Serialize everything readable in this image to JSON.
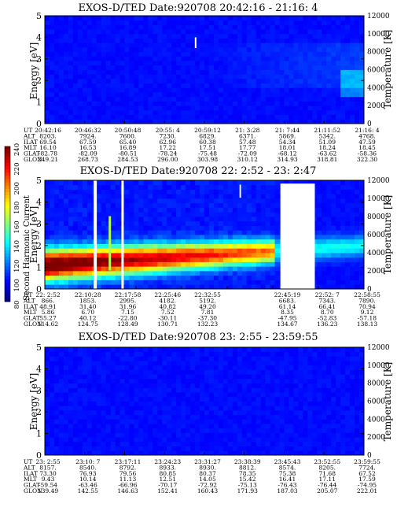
{
  "chart_data": [
    {
      "type": "heatmap",
      "title": "EXOS-D/TED   Date:920708  20:42:16 - 21:16: 4",
      "ylabel": "Energy [eV]",
      "y2label": "Temperature [K]",
      "ylim": [
        0,
        5
      ],
      "y2lim": [
        0,
        12000
      ],
      "yticks": [
        "0",
        "1",
        "2",
        "3",
        "4",
        "5"
      ],
      "y2ticks": [
        "0",
        "2000",
        "4000",
        "6000",
        "8000",
        "10000",
        "12000"
      ],
      "time_ticks": [
        "20:42:16",
        "20:46:32",
        "20:50:48",
        "20:55: 4",
        "20:59:12",
        "21: 3:28",
        "21: 7:44",
        "21:11:52",
        "21:16: 4"
      ],
      "table": [
        {
          "label": "UT",
          "values": [
            "20:42:16",
            "20:46:32",
            "20:50:48",
            "20:55: 4",
            "20:59:12",
            "21: 3:28",
            "21: 7:44",
            "21:11:52",
            "21:16: 4"
          ]
        },
        {
          "label": "ALT",
          "values": [
            "8203.",
            "7924.",
            "7600.",
            "7230.",
            "6829.",
            "6371.",
            "5869.",
            "5342.",
            "4768."
          ]
        },
        {
          "label": "ILAT",
          "values": [
            "69.54",
            "67.59",
            "65.40",
            "62.96",
            "60.38",
            "57.48",
            "54.34",
            "51.09",
            "47.59"
          ]
        },
        {
          "label": "MLT",
          "values": [
            "16.10",
            "16.53",
            "16.89",
            "17.22",
            "17.51",
            "17.77",
            "18.01",
            "18.24",
            "18.45"
          ]
        },
        {
          "label": "GLAT",
          "values": [
            "-82.78",
            "-82.09",
            "-80.51",
            "-78.24",
            "-75.48",
            "-72.09",
            "-68.12",
            "-63.62",
            "-58.36"
          ]
        },
        {
          "label": "GLON",
          "values": [
            "249.21",
            "268.73",
            "284.53",
            "296.00",
            "303.98",
            "310.12",
            "314.93",
            "318.81",
            "322.30"
          ]
        }
      ]
    },
    {
      "type": "heatmap",
      "title": "EXOS-D/TED   Date:920708  22: 2:52 - 23: 2:47",
      "ylabel": "Energy [eV]",
      "y2label": "Temperature [K]",
      "ylim": [
        0,
        5
      ],
      "y2lim": [
        0,
        12000
      ],
      "yticks": [
        "0",
        "1",
        "2",
        "3",
        "4",
        "5"
      ],
      "y2ticks": [
        "0",
        "2000",
        "4000",
        "6000",
        "8000",
        "10000",
        "12000"
      ],
      "colorbar": {
        "label": "Second Harmonic Current",
        "range": [
          80,
          240
        ],
        "ticks": [
          "80",
          "100",
          "120",
          "140",
          "160",
          "180",
          "200",
          "220",
          "240"
        ]
      },
      "time_ticks": [
        "22: 2:52",
        "22:10:28",
        "22:17:58",
        "22:25:46",
        "22:32:55",
        "22:45:19",
        "22:52: 7",
        "22:58:55"
      ],
      "table": [
        {
          "label": "UT",
          "values": [
            "22: 2:52",
            "22:10:28",
            "22:17:58",
            "22:25:46",
            "22:32:55",
            "",
            "22:45:19",
            "22:52: 7",
            "22:58:55"
          ]
        },
        {
          "label": "ALT",
          "values": [
            "866.",
            "1853.",
            "2995.",
            "4182.",
            "5192.",
            "",
            "6683.",
            "7343.",
            "7890."
          ]
        },
        {
          "label": "ILAT",
          "values": [
            "48.91",
            "31.40",
            "31.96",
            "40.82",
            "49.20",
            "",
            "61.14",
            "66.41",
            "70.94"
          ]
        },
        {
          "label": "MLT",
          "values": [
            "5.86",
            "6.70",
            "7.15",
            "7.52",
            "7.81",
            "",
            "8.35",
            "8.70",
            "9.12"
          ]
        },
        {
          "label": "GLAT",
          "values": [
            "55.27",
            "40.12",
            "-22.80",
            "-30.11",
            "-37.30",
            "",
            "-47.95",
            "-52.83",
            "-57.18"
          ]
        },
        {
          "label": "GLON",
          "values": [
            "114.62",
            "124.75",
            "128.49",
            "130.71",
            "132.23",
            "",
            "134.67",
            "136.23",
            "138.13"
          ]
        }
      ]
    },
    {
      "type": "heatmap",
      "title": "EXOS-D/TED   Date:920708  23: 2:55 - 23:59:55",
      "ylabel": "Energy [eV]",
      "y2label": "Temperature [K]",
      "ylim": [
        0,
        5
      ],
      "y2lim": [
        0,
        12000
      ],
      "yticks": [
        "0",
        "1",
        "2",
        "3",
        "4",
        "5"
      ],
      "y2ticks": [
        "0",
        "2000",
        "4000",
        "6000",
        "8000",
        "10000",
        "12000"
      ],
      "time_ticks": [
        "23: 2:55",
        "23:10: 7",
        "23:17:11",
        "23:24:23",
        "23:31:27",
        "23:38:39",
        "23:45:43",
        "23:52:55",
        "23:59:55"
      ],
      "table": [
        {
          "label": "UT",
          "values": [
            "23: 2:55",
            "23:10: 7",
            "23:17:11",
            "23:24:23",
            "23:31:27",
            "23:38:39",
            "23:45:43",
            "23:52:55",
            "23:59:55"
          ]
        },
        {
          "label": "ALT",
          "values": [
            "8157.",
            "8540.",
            "8792.",
            "8933.",
            "8930.",
            "8812.",
            "8574.",
            "8205.",
            "7724."
          ]
        },
        {
          "label": "ILAT",
          "values": [
            "73.30",
            "76.93",
            "79.56",
            "80.85",
            "80.37",
            "78.35",
            "75.38",
            "71.68",
            "67.52"
          ]
        },
        {
          "label": "MLT",
          "values": [
            "9.43",
            "10.14",
            "11.13",
            "12.51",
            "14.05",
            "15.42",
            "16.41",
            "17.11",
            "17.59"
          ]
        },
        {
          "label": "GLAT",
          "values": [
            "-59.54",
            "-63.46",
            "-66.96",
            "-70.17",
            "-72.92",
            "-75.13",
            "-76.43",
            "-76.44",
            "-74.95"
          ]
        },
        {
          "label": "GLON",
          "values": [
            "139.49",
            "142.55",
            "146.63",
            "152.41",
            "160.43",
            "171.93",
            "187.03",
            "205.07",
            "222.01"
          ]
        }
      ]
    }
  ]
}
